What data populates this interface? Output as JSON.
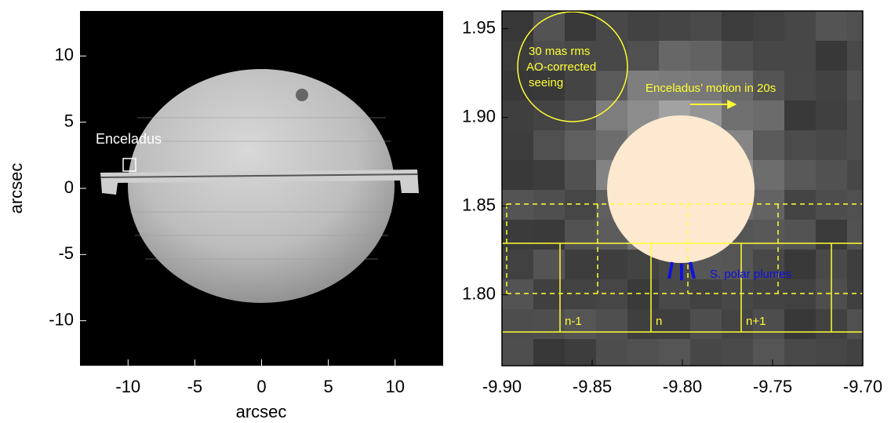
{
  "chart_data": [
    {
      "type": "image",
      "xlabel": "arcsec",
      "ylabel": "arcsec",
      "xlim": [
        -13.6,
        13.6
      ],
      "ylim": [
        -13.4,
        13.4
      ],
      "xticks": [
        -10,
        -5,
        0,
        5,
        10
      ],
      "yticks": [
        -10,
        -5,
        0,
        5,
        10
      ],
      "annotations": [
        "Enceladus"
      ]
    },
    {
      "type": "image",
      "xlim": [
        -9.9,
        -9.7
      ],
      "ylim": [
        1.76,
        1.96
      ],
      "xticks": [
        {
          "value": -9.9,
          "label": "-9.90"
        },
        -9.85,
        {
          "value": -9.8,
          "label": "-9.80"
        },
        -9.75,
        {
          "value": -9.7,
          "label": "-9.70"
        }
      ],
      "yticks": [
        {
          "value": 1.8,
          "label": "1.80"
        },
        1.85,
        {
          "value": 1.9,
          "label": "1.90"
        },
        1.95
      ],
      "annotations": [
        "30 mas rms",
        "AO-corrected",
        "seeing",
        "Enceladus’ motion in 20s",
        "S. polar plumes",
        "n-1",
        "n",
        "n+1"
      ]
    }
  ]
}
